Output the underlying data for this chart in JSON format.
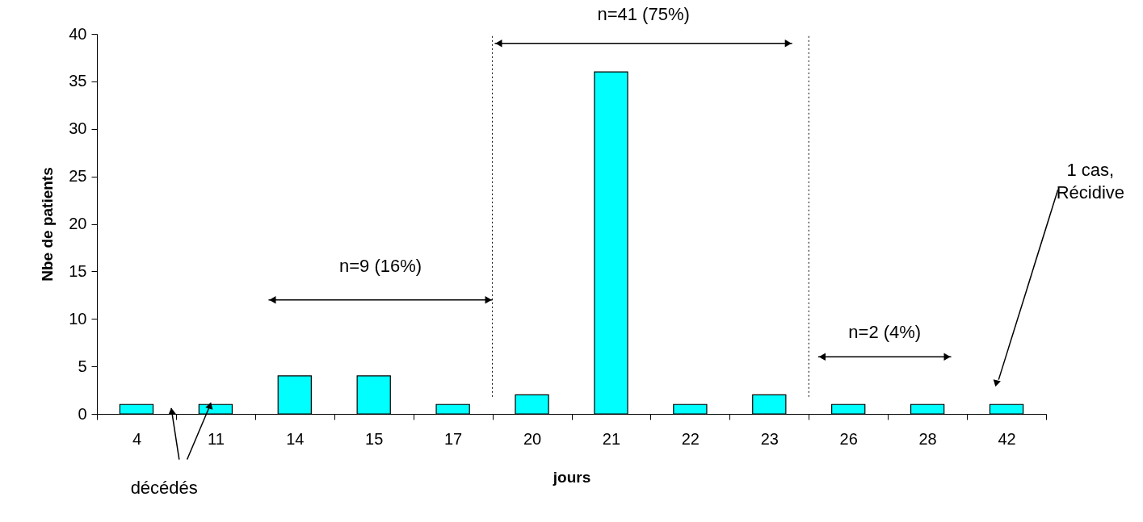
{
  "chart_data": {
    "type": "bar",
    "xlabel": "jours",
    "ylabel": "Nbe de patients",
    "categories": [
      "4",
      "11",
      "14",
      "15",
      "17",
      "20",
      "21",
      "22",
      "23",
      "26",
      "28",
      "42"
    ],
    "values": [
      1,
      1,
      4,
      4,
      1,
      2,
      36,
      1,
      2,
      1,
      1,
      1
    ],
    "color": "#00ffff",
    "ylim": [
      0,
      40
    ],
    "yticks": [
      0,
      5,
      10,
      15,
      20,
      25,
      30,
      35,
      40
    ],
    "grid": false,
    "annotations": [
      "n=9 (16%)",
      "n=41 (75%)",
      "n=2 (4%)",
      {
        "text": "décédés",
        "x": "11",
        "y": 1
      },
      "1 cas,\nRécidive"
    ]
  }
}
